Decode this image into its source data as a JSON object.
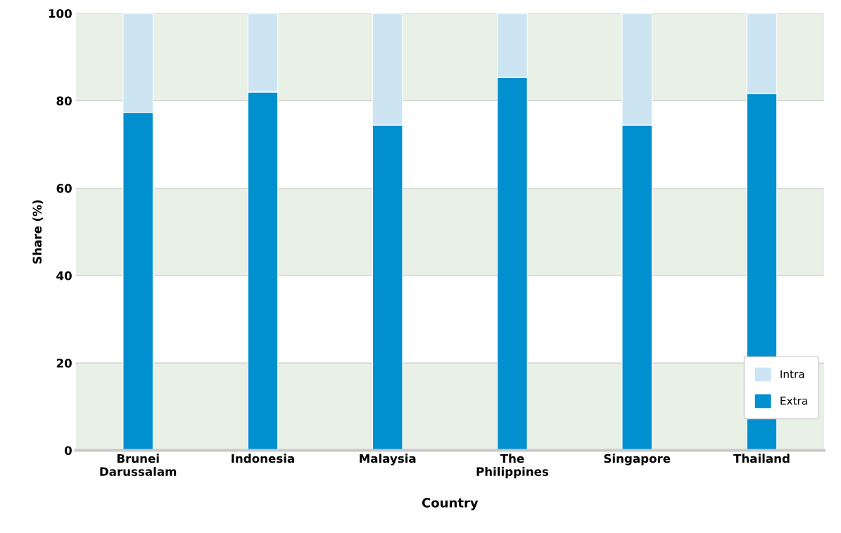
{
  "chart_data": {
    "type": "bar",
    "xlabel": "Country",
    "ylabel": "Share (%)",
    "categories": [
      "Brunei\nDarussalam",
      "Indonesia",
      "Malaysia",
      "The\nPhilippines",
      "Singapore",
      "Thailand"
    ],
    "stacked": true,
    "series": [
      {
        "name": "Extra",
        "color": "#008fcf",
        "values": [
          77.3,
          82,
          74.4,
          85.3,
          74.4,
          81.6
        ]
      },
      {
        "name": "Intra",
        "color": "#cde5f3",
        "values": [
          22.7,
          18,
          25.6,
          14.7,
          25.6,
          18.4
        ]
      }
    ],
    "ylim": [
      0,
      100
    ],
    "yticks": [
      0,
      20,
      40,
      60,
      80,
      100
    ],
    "grid": "y",
    "legend": "bottom right",
    "bands": [
      {
        "axis": "y",
        "from": 0,
        "to": 20,
        "color": "#e9f0e6"
      },
      {
        "axis": "y",
        "from": 40,
        "to": 60,
        "color": "#e9f0e6"
      },
      {
        "axis": "y",
        "from": 80,
        "to": 100,
        "color": "#e9f0e6"
      }
    ]
  }
}
